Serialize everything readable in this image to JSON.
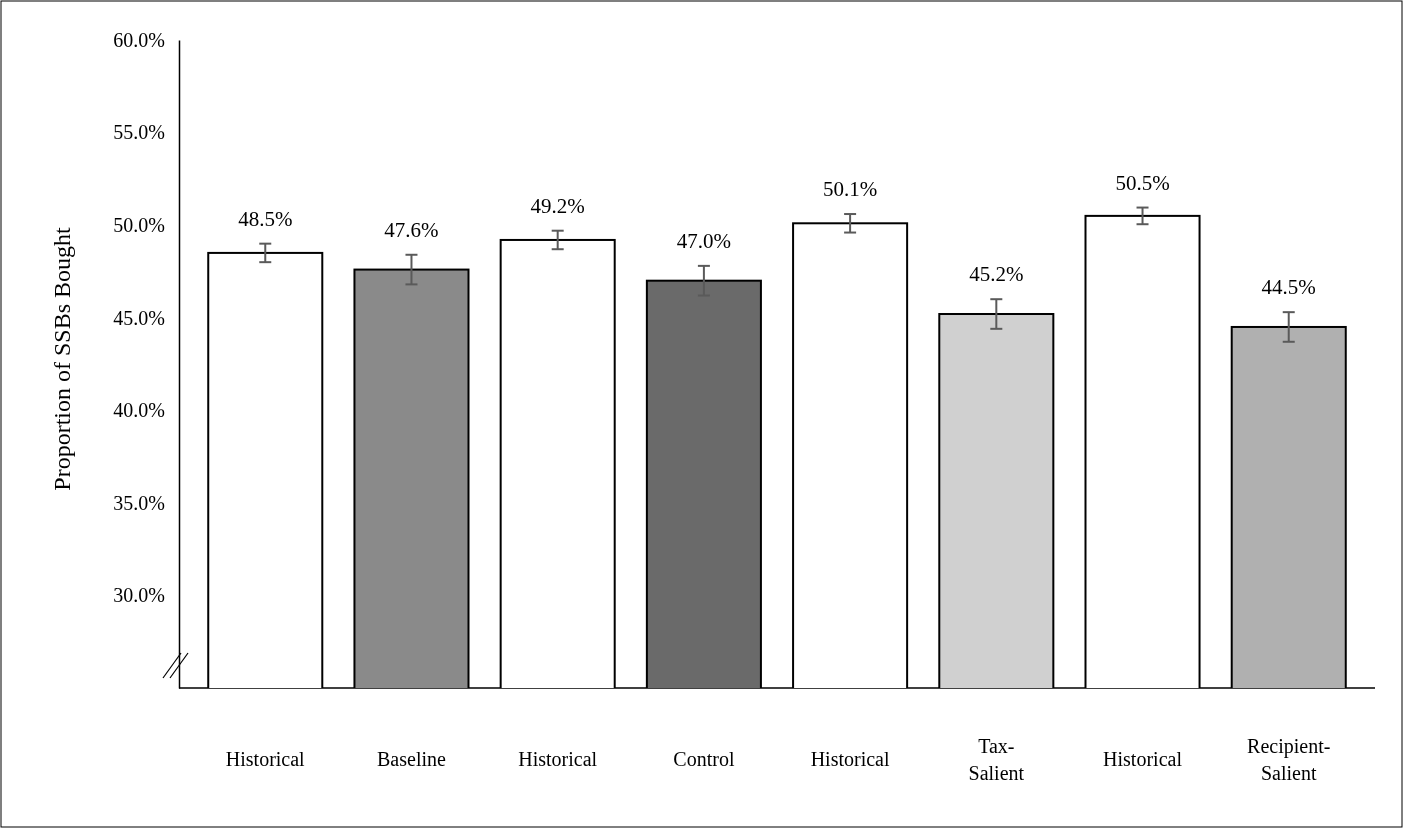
{
  "chart_data": {
    "type": "bar",
    "ylabel": "Proportion of SSBs Bought",
    "categories": [
      "Historical",
      "Baseline",
      "Historical",
      "Control",
      "Historical",
      "Tax-Salient",
      "Historical",
      "Recipient-Salient"
    ],
    "values": [
      48.5,
      47.6,
      49.2,
      47.0,
      50.1,
      45.2,
      50.5,
      44.5
    ],
    "value_labels": [
      "48.5%",
      "47.6%",
      "49.2%",
      "47.0%",
      "50.1%",
      "45.2%",
      "50.5%",
      "44.5%"
    ],
    "errors": [
      0.5,
      0.8,
      0.5,
      0.8,
      0.5,
      0.8,
      0.45,
      0.8
    ],
    "colors": [
      "#ffffff",
      "#8a8a8a",
      "#ffffff",
      "#6a6a6a",
      "#ffffff",
      "#d0d0d0",
      "#ffffff",
      "#b0b0b0"
    ],
    "ylim": [
      25,
      60
    ],
    "yticks": [
      {
        "value": 30,
        "label": "30.0%"
      },
      {
        "value": 35,
        "label": "35.0%"
      },
      {
        "value": 40,
        "label": "40.0%"
      },
      {
        "value": 45,
        "label": "45.0%"
      },
      {
        "value": 50,
        "label": "50.0%"
      },
      {
        "value": 55,
        "label": "55.0%"
      },
      {
        "value": 60,
        "label": "60.0%"
      }
    ],
    "grid": false
  }
}
